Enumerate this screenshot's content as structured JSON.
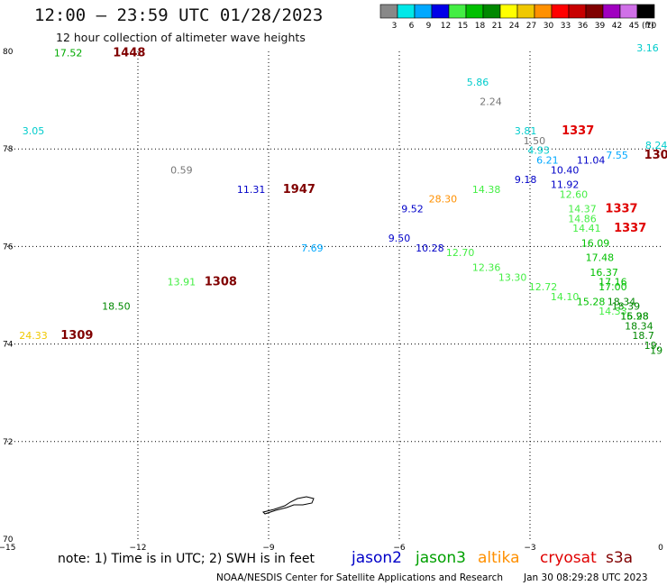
{
  "header": {
    "title": "12:00 – 23:59 UTC 01/28/2023",
    "subtitle": "12 hour collection of altimeter wave heights"
  },
  "colorbar": {
    "unit": "(ft)",
    "bins": [
      {
        "label": "3",
        "color": "#888888"
      },
      {
        "label": "6",
        "color": "#00e8e8"
      },
      {
        "label": "9",
        "color": "#00a8ff"
      },
      {
        "label": "12",
        "color": "#0000e8"
      },
      {
        "label": "15",
        "color": "#44ee44"
      },
      {
        "label": "18",
        "color": "#00c000"
      },
      {
        "label": "21",
        "color": "#008800"
      },
      {
        "label": "24",
        "color": "#ffff00"
      },
      {
        "label": "27",
        "color": "#f0c800"
      },
      {
        "label": "30",
        "color": "#ff9000"
      },
      {
        "label": "33",
        "color": "#ff0000"
      },
      {
        "label": "36",
        "color": "#c80000"
      },
      {
        "label": "39",
        "color": "#800000"
      },
      {
        "label": "42",
        "color": "#a000c0"
      },
      {
        "label": "45",
        "color": "#d070e8"
      },
      {
        "label": "70",
        "color": "#000000"
      }
    ]
  },
  "axes": {
    "x_ticks": [
      -15,
      -12,
      -9,
      -6,
      -3,
      0
    ],
    "x_tick_labels": [
      "−15",
      "−12",
      "−9",
      "−6",
      "−3",
      "0"
    ],
    "y_ticks": [
      70,
      72,
      74,
      76,
      78,
      80
    ],
    "y_tick_labels": [
      "70",
      "72",
      "74",
      "76",
      "78",
      "80"
    ],
    "x_range": [
      -15,
      0
    ],
    "y_range": [
      70,
      80
    ],
    "grid": "dotted"
  },
  "labels": [
    {
      "lon": -13.6,
      "lat": 79.9,
      "text": "17.52",
      "color": "#00aa00"
    },
    {
      "lon": -12.2,
      "lat": 79.9,
      "text": "1448",
      "color": "#800000",
      "bold": true
    },
    {
      "lon": -0.3,
      "lat": 80.0,
      "text": "3.16",
      "color": "#00cccc"
    },
    {
      "lon": -4.2,
      "lat": 79.3,
      "text": "5.86",
      "color": "#00cccc"
    },
    {
      "lon": -3.9,
      "lat": 78.9,
      "text": "2.24",
      "color": "#777777"
    },
    {
      "lon": -14.4,
      "lat": 78.3,
      "text": "3.05",
      "color": "#00cccc"
    },
    {
      "lon": -3.1,
      "lat": 78.3,
      "text": "3.81",
      "color": "#00cccc"
    },
    {
      "lon": -1.9,
      "lat": 78.3,
      "text": "1337",
      "color": "#e00000",
      "bold": true
    },
    {
      "lon": -2.9,
      "lat": 78.1,
      "text": "1.50",
      "color": "#777777"
    },
    {
      "lon": -2.8,
      "lat": 77.9,
      "text": "4.93",
      "color": "#00cccc"
    },
    {
      "lon": -0.1,
      "lat": 78.0,
      "text": "8.24",
      "color": "#00cccc"
    },
    {
      "lon": -2.6,
      "lat": 77.7,
      "text": "6.21",
      "color": "#00a8ff"
    },
    {
      "lon": -1.0,
      "lat": 77.8,
      "text": "7.55",
      "color": "#00a8ff"
    },
    {
      "lon": -0.1,
      "lat": 77.8,
      "text": "130",
      "color": "#800000",
      "bold": true
    },
    {
      "lon": -1.6,
      "lat": 77.7,
      "text": "11.04",
      "color": "#0000c8"
    },
    {
      "lon": -2.2,
      "lat": 77.5,
      "text": "10.40",
      "color": "#0000c8"
    },
    {
      "lon": -11.0,
      "lat": 77.5,
      "text": "0.59",
      "color": "#777777"
    },
    {
      "lon": -3.1,
      "lat": 77.3,
      "text": "9.18",
      "color": "#0000c8"
    },
    {
      "lon": -9.4,
      "lat": 77.1,
      "text": "11.31",
      "color": "#0000c8"
    },
    {
      "lon": -8.3,
      "lat": 77.1,
      "text": "1947",
      "color": "#800000",
      "bold": true
    },
    {
      "lon": -2.2,
      "lat": 77.2,
      "text": "11.92",
      "color": "#0000c8"
    },
    {
      "lon": -4.0,
      "lat": 77.1,
      "text": "14.38",
      "color": "#44ee44"
    },
    {
      "lon": -2.0,
      "lat": 77.0,
      "text": "12.60",
      "color": "#44ee44"
    },
    {
      "lon": -5.0,
      "lat": 76.9,
      "text": "28.30",
      "color": "#ff9000"
    },
    {
      "lon": -5.7,
      "lat": 76.7,
      "text": "9.52",
      "color": "#0000c8"
    },
    {
      "lon": -1.8,
      "lat": 76.7,
      "text": "14.37",
      "color": "#44ee44"
    },
    {
      "lon": -0.9,
      "lat": 76.7,
      "text": "1337",
      "color": "#e00000",
      "bold": true
    },
    {
      "lon": -1.8,
      "lat": 76.5,
      "text": "14.86",
      "color": "#44ee44"
    },
    {
      "lon": -1.7,
      "lat": 76.3,
      "text": "14.41",
      "color": "#44ee44"
    },
    {
      "lon": -0.7,
      "lat": 76.3,
      "text": "1337",
      "color": "#e00000",
      "bold": true
    },
    {
      "lon": -6.0,
      "lat": 76.1,
      "text": "9.50",
      "color": "#0000c8"
    },
    {
      "lon": -1.5,
      "lat": 76.0,
      "text": "16.09",
      "color": "#00c000"
    },
    {
      "lon": -8.0,
      "lat": 75.9,
      "text": "7.69",
      "color": "#00a8ff"
    },
    {
      "lon": -5.3,
      "lat": 75.9,
      "text": "10.28",
      "color": "#0000c8"
    },
    {
      "lon": -4.6,
      "lat": 75.8,
      "text": "12.70",
      "color": "#44ee44"
    },
    {
      "lon": -1.4,
      "lat": 75.7,
      "text": "17.48",
      "color": "#00c000"
    },
    {
      "lon": -4.0,
      "lat": 75.5,
      "text": "12.36",
      "color": "#44ee44"
    },
    {
      "lon": -1.3,
      "lat": 75.4,
      "text": "16.37",
      "color": "#00c000"
    },
    {
      "lon": -3.4,
      "lat": 75.3,
      "text": "13.30",
      "color": "#44ee44"
    },
    {
      "lon": -1.1,
      "lat": 75.2,
      "text": "17.16",
      "color": "#00c000"
    },
    {
      "lon": -11.0,
      "lat": 75.2,
      "text": "13.91",
      "color": "#44ee44"
    },
    {
      "lon": -10.1,
      "lat": 75.2,
      "text": "1308",
      "color": "#800000",
      "bold": true
    },
    {
      "lon": -2.7,
      "lat": 75.1,
      "text": "12.72",
      "color": "#44ee44"
    },
    {
      "lon": -1.1,
      "lat": 75.1,
      "text": "17.00",
      "color": "#00c000"
    },
    {
      "lon": -2.2,
      "lat": 74.9,
      "text": "14.10",
      "color": "#44ee44"
    },
    {
      "lon": -1.6,
      "lat": 74.8,
      "text": "15.28",
      "color": "#00c000"
    },
    {
      "lon": -0.9,
      "lat": 74.8,
      "text": "18.34",
      "color": "#008800"
    },
    {
      "lon": -12.5,
      "lat": 74.7,
      "text": "18.50",
      "color": "#008800"
    },
    {
      "lon": -0.8,
      "lat": 74.7,
      "text": "18.39",
      "color": "#008800"
    },
    {
      "lon": -1.1,
      "lat": 74.6,
      "text": "14.33",
      "color": "#44ee44"
    },
    {
      "lon": -0.6,
      "lat": 74.5,
      "text": "16.28",
      "color": "#00c000"
    },
    {
      "lon": -0.6,
      "lat": 74.5,
      "text": "15.98",
      "color": "#008800"
    },
    {
      "lon": -0.5,
      "lat": 74.3,
      "text": "18.34",
      "color": "#008800"
    },
    {
      "lon": -14.4,
      "lat": 74.1,
      "text": "24.33",
      "color": "#f0c800"
    },
    {
      "lon": -13.4,
      "lat": 74.1,
      "text": "1309",
      "color": "#800000",
      "bold": true
    },
    {
      "lon": -0.4,
      "lat": 74.1,
      "text": "18.7",
      "color": "#008800"
    },
    {
      "lon": -0.2,
      "lat": 73.9,
      "text": "19.",
      "color": "#008800"
    },
    {
      "lon": -0.1,
      "lat": 73.8,
      "text": "19",
      "color": "#008800"
    }
  ],
  "footer": {
    "note": "note: 1) Time is in UTC; 2) SWH is in feet",
    "credit": "NOAA/NESDIS Center for Satellite Applications and Research",
    "timestamp": "Jan 30 08:29:28 UTC 2023",
    "legend": [
      {
        "name": "jason2",
        "color": "#0000c8"
      },
      {
        "name": "jason3",
        "color": "#00a000"
      },
      {
        "name": "altika",
        "color": "#ff9000"
      },
      {
        "name": "cryosat",
        "color": "#e00000"
      },
      {
        "name": "s3a",
        "color": "#800000"
      }
    ]
  }
}
